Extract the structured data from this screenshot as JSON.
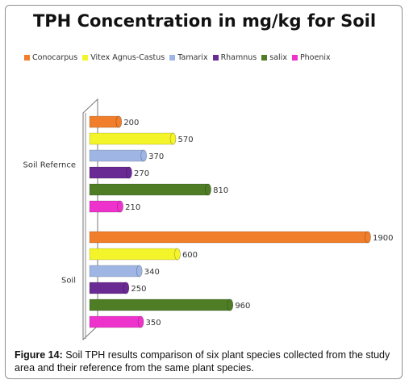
{
  "chart_data": {
    "type": "bar",
    "orientation": "horizontal",
    "title": "TPH Concentration in mg/kg for Soil",
    "categories": [
      "Soil Refernce",
      "Soil"
    ],
    "series": [
      {
        "name": "Conocarpus",
        "color": "#f07e2b",
        "values": [
          200,
          1900
        ]
      },
      {
        "name": "Vitex Agnus-Castus",
        "color": "#f4f42a",
        "values": [
          570,
          600
        ]
      },
      {
        "name": "Tamarix",
        "color": "#9fb5e4",
        "values": [
          370,
          340
        ]
      },
      {
        "name": "Rhamnus",
        "color": "#6a2a93",
        "values": [
          270,
          250
        ]
      },
      {
        "name": "salix",
        "color": "#4e7d26",
        "values": [
          810,
          960
        ]
      },
      {
        "name": "Phoenix",
        "color": "#ee33cc",
        "values": [
          210,
          350
        ]
      }
    ],
    "xlim": [
      0,
      1900
    ],
    "legend_position": "top",
    "grid": false
  },
  "caption": {
    "label": "Figure 14:",
    "text": " Soil TPH results comparison of six plant species collected from the study area and their reference from the same plant species."
  }
}
